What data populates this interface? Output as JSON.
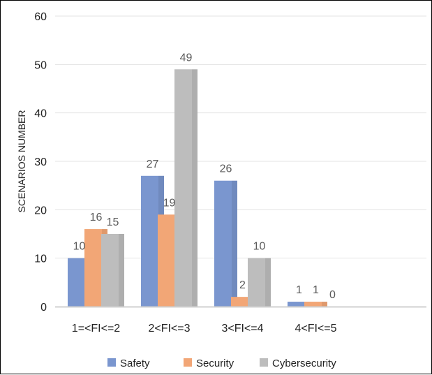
{
  "chart_data": {
    "type": "bar",
    "categories": [
      "1=<FI<=2",
      "2<FI<=3",
      "3<FI<=4",
      "4<FI<=5"
    ],
    "series": [
      {
        "name": "Safety",
        "values": [
          10,
          27,
          26,
          1
        ],
        "color": "#7a96cf"
      },
      {
        "name": "Security",
        "values": [
          16,
          19,
          2,
          1
        ],
        "color": "#f2a676"
      },
      {
        "name": "Cybersecurity",
        "values": [
          15,
          49,
          10,
          0
        ],
        "color": "#bdbdbd"
      }
    ],
    "ylabel": "SCENARIOS NUMBER",
    "xlabel": "",
    "ylim": [
      0,
      60
    ],
    "yticks": [
      0,
      10,
      20,
      30,
      40,
      50,
      60
    ],
    "grid": true,
    "legend_position": "bottom"
  }
}
